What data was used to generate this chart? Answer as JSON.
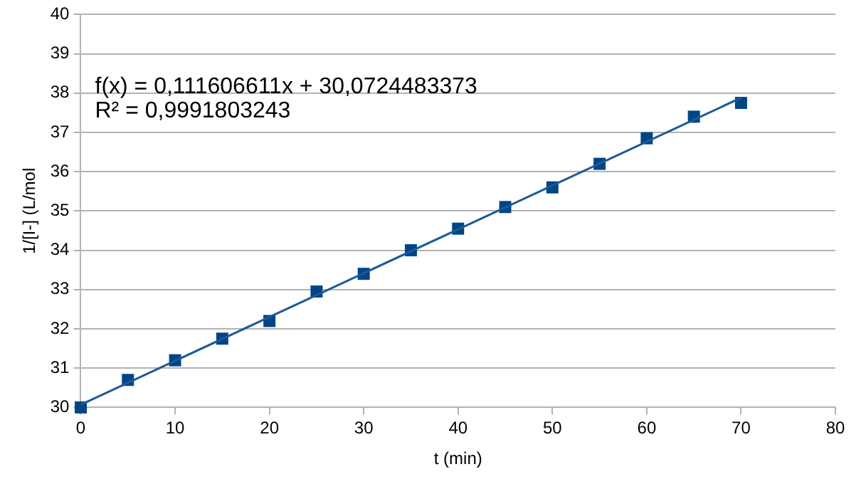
{
  "chart_data": {
    "type": "scatter",
    "xlabel": "t (min)",
    "ylabel": "1/[I-] (L/mol",
    "xlim": [
      0,
      80
    ],
    "xticks": [
      0,
      10,
      20,
      30,
      40,
      50,
      60,
      70,
      80
    ],
    "ylim": [
      30,
      40
    ],
    "yticks": [
      30,
      31,
      32,
      33,
      34,
      35,
      36,
      37,
      38,
      39,
      40
    ],
    "grid": "y",
    "marker": "square",
    "annotations": [
      "f(x) = 0,111606611x + 30,0724483373",
      "R² = 0,9991803243"
    ],
    "series": [
      {
        "color": "#004586",
        "x": [
          0,
          5,
          10,
          15,
          20,
          25,
          30,
          35,
          40,
          45,
          50,
          55,
          60,
          65,
          70
        ],
        "values": [
          30.0,
          30.7,
          31.2,
          31.75,
          32.2,
          32.95,
          33.4,
          34.0,
          34.55,
          35.1,
          35.6,
          36.2,
          36.85,
          37.4,
          37.75
        ]
      },
      {
        "type": "line",
        "color": "#1c5a96",
        "marker": "none",
        "line_style": "solid",
        "x": [
          0,
          70
        ],
        "values": [
          30.07,
          37.88
        ]
      }
    ]
  }
}
